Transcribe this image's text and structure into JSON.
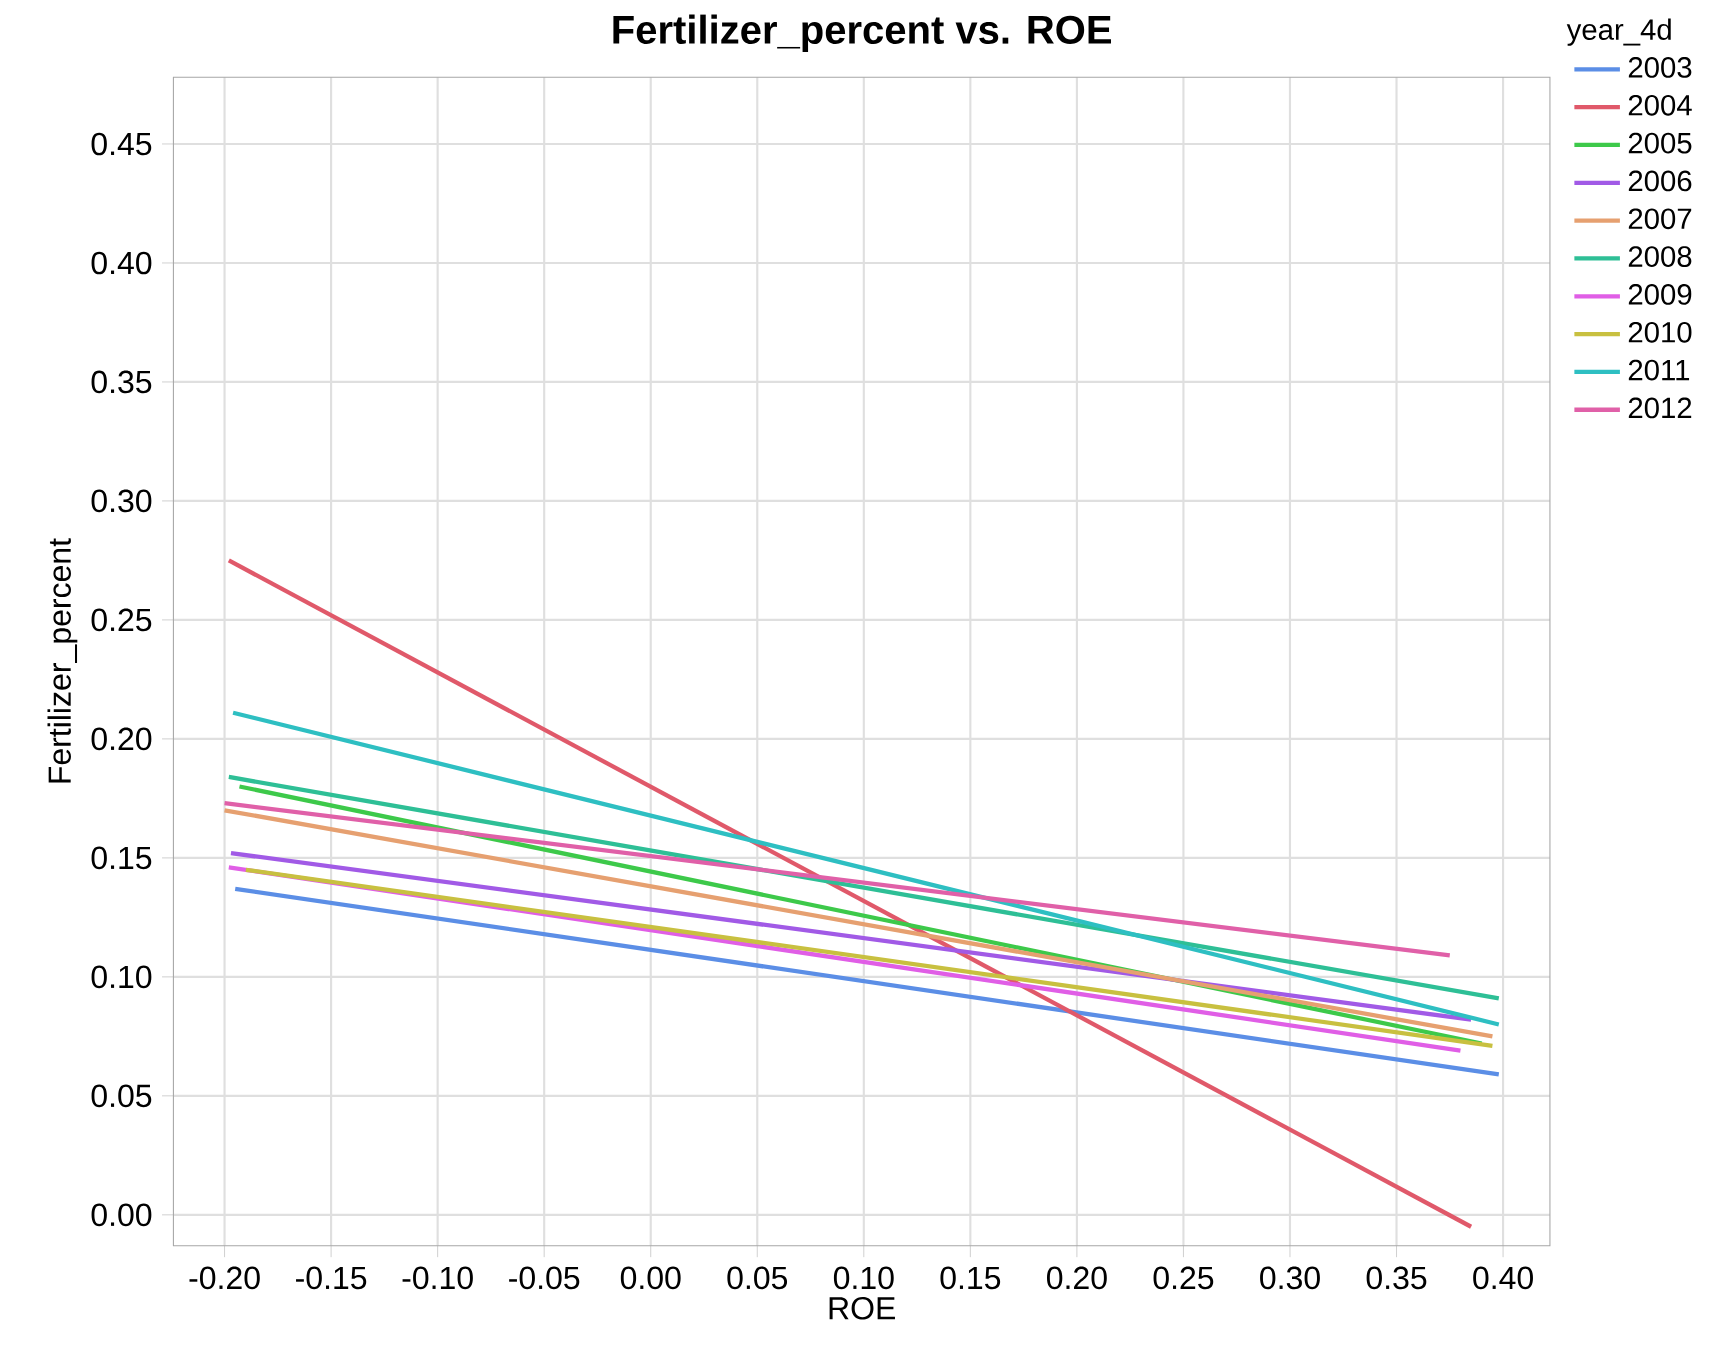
{
  "chart_data": {
    "type": "line",
    "title": "Fertilizer_percent vs. ROE",
    "xlabel": "ROE",
    "ylabel": "Fertilizer_percent",
    "legend_title": "year_4d",
    "xlim": [
      -0.224,
      0.422
    ],
    "ylim": [
      -0.013,
      0.478
    ],
    "xticks": [
      {
        "value": -0.2,
        "label": "-0.20"
      },
      {
        "value": -0.15,
        "label": "-0.15"
      },
      {
        "value": -0.1,
        "label": "-0.10"
      },
      {
        "value": -0.05,
        "label": "-0.05"
      },
      {
        "value": 0,
        "label": "0.00"
      },
      {
        "value": 0.05,
        "label": "0.05"
      },
      {
        "value": 0.1,
        "label": "0.10"
      },
      {
        "value": 0.15,
        "label": "0.15"
      },
      {
        "value": 0.2,
        "label": "0.20"
      },
      {
        "value": 0.25,
        "label": "0.25"
      },
      {
        "value": 0.3,
        "label": "0.30"
      },
      {
        "value": 0.35,
        "label": "0.35"
      },
      {
        "value": 0.4,
        "label": "0.40"
      }
    ],
    "yticks": [
      {
        "value": 0,
        "label": "0.00"
      },
      {
        "value": 0.05,
        "label": "0.05"
      },
      {
        "value": 0.1,
        "label": "0.10"
      },
      {
        "value": 0.15,
        "label": "0.15"
      },
      {
        "value": 0.2,
        "label": "0.20"
      },
      {
        "value": 0.25,
        "label": "0.25"
      },
      {
        "value": 0.3,
        "label": "0.30"
      },
      {
        "value": 0.35,
        "label": "0.35"
      },
      {
        "value": 0.4,
        "label": "0.40"
      },
      {
        "value": 0.45,
        "label": "0.45"
      }
    ],
    "grid": true,
    "legend": "right",
    "series": [
      {
        "name": "2003",
        "color": "#5b8ee6",
        "x": [
          -0.195,
          0.398
        ],
        "values": [
          0.137,
          0.059
        ]
      },
      {
        "name": "2004",
        "color": "#e0596a",
        "x": [
          -0.198,
          0.385
        ],
        "values": [
          0.275,
          -0.005
        ]
      },
      {
        "name": "2005",
        "color": "#3dc94a",
        "x": [
          -0.193,
          0.39
        ],
        "values": [
          0.18,
          0.072
        ]
      },
      {
        "name": "2006",
        "color": "#a15ae6",
        "x": [
          -0.197,
          0.385
        ],
        "values": [
          0.152,
          0.082
        ]
      },
      {
        "name": "2007",
        "color": "#e6a070",
        "x": [
          -0.2,
          0.395
        ],
        "values": [
          0.17,
          0.075
        ]
      },
      {
        "name": "2008",
        "color": "#2ebf96",
        "x": [
          -0.198,
          0.398
        ],
        "values": [
          0.184,
          0.091
        ]
      },
      {
        "name": "2009",
        "color": "#e05ee6",
        "x": [
          -0.198,
          0.38
        ],
        "values": [
          0.146,
          0.069
        ]
      },
      {
        "name": "2010",
        "color": "#c8c040",
        "x": [
          -0.19,
          0.395
        ],
        "values": [
          0.145,
          0.071
        ]
      },
      {
        "name": "2011",
        "color": "#2ebfc2",
        "x": [
          -0.196,
          0.398
        ],
        "values": [
          0.211,
          0.08
        ]
      },
      {
        "name": "2012",
        "color": "#e060a8",
        "x": [
          -0.2,
          0.375
        ],
        "values": [
          0.173,
          0.109
        ]
      }
    ]
  }
}
